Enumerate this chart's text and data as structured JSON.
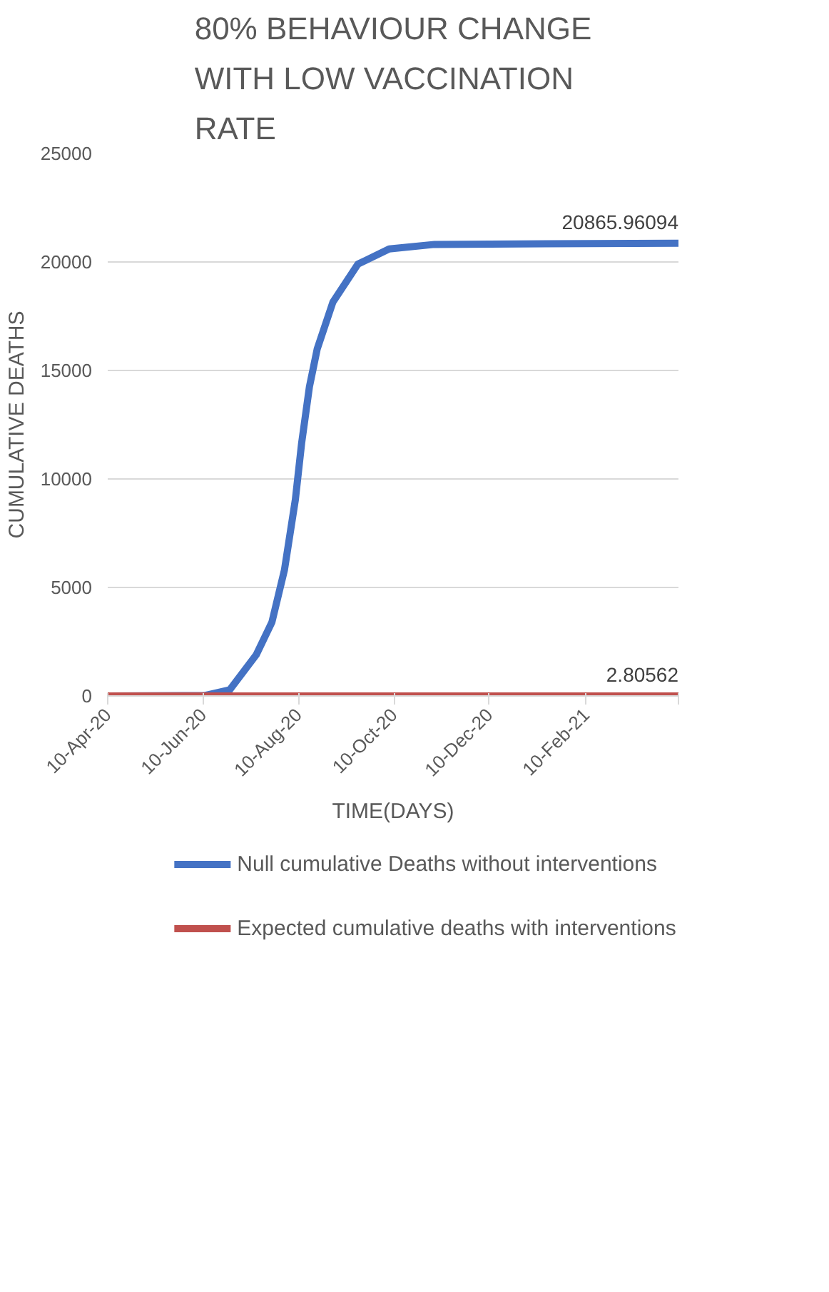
{
  "chart_data": {
    "type": "line",
    "title": "80% BEHAVIOUR CHANGE WITH LOW VACCINATION RATE",
    "xlabel": "TIME(DAYS)",
    "ylabel": "CUMULATIVE DEATHS",
    "xlim": [
      "2020-04-10",
      "2021-04-10"
    ],
    "xticks": [
      {
        "value": "2020-04-10",
        "label": "10-Apr-20"
      },
      {
        "value": "2020-06-10",
        "label": "10-Jun-20"
      },
      {
        "value": "2020-08-10",
        "label": "10-Aug-20"
      },
      {
        "value": "2020-10-10",
        "label": "10-Oct-20"
      },
      {
        "value": "2020-12-10",
        "label": "10-Dec-20"
      },
      {
        "value": "2021-02-10",
        "label": "10-Feb-21"
      },
      {
        "value": "2021-04-10",
        "label": null
      }
    ],
    "ylim": [
      0,
      25000
    ],
    "yticks": [
      0,
      5000,
      10000,
      15000,
      20000,
      25000
    ],
    "grid": "y",
    "legend": "bottom",
    "line_style": "solid",
    "marker": "none",
    "series": [
      {
        "name": "Null cumulative Deaths without interventions",
        "color": "#4472c4",
        "x": [
          "2020-04-10",
          "2020-06-11",
          "2020-06-27",
          "2020-07-14",
          "2020-07-24",
          "2020-08-01",
          "2020-08-08",
          "2020-08-12",
          "2020-08-17",
          "2020-08-22",
          "2020-09-01",
          "2020-09-17",
          "2020-10-07",
          "2020-11-05",
          "2021-04-10"
        ],
        "values": [
          0,
          20,
          280,
          1900,
          3400,
          5800,
          9050,
          11650,
          14250,
          16000,
          18150,
          19900,
          20600,
          20810,
          20865.96094
        ],
        "value_labels": [
          null,
          null,
          null,
          null,
          null,
          null,
          null,
          null,
          null,
          null,
          null,
          null,
          null,
          null,
          "20865.96094"
        ]
      },
      {
        "name": "Expected cumulative deaths with interventions",
        "color": "#c0504d",
        "x": [
          "2020-04-10",
          "2020-06-10",
          "2020-08-10",
          "2020-10-10",
          "2020-12-10",
          "2021-02-10",
          "2021-04-10"
        ],
        "values": [
          0,
          0,
          0,
          0,
          0,
          0,
          2.80562
        ],
        "value_labels": [
          null,
          null,
          null,
          null,
          null,
          null,
          "2.80562"
        ]
      }
    ]
  }
}
